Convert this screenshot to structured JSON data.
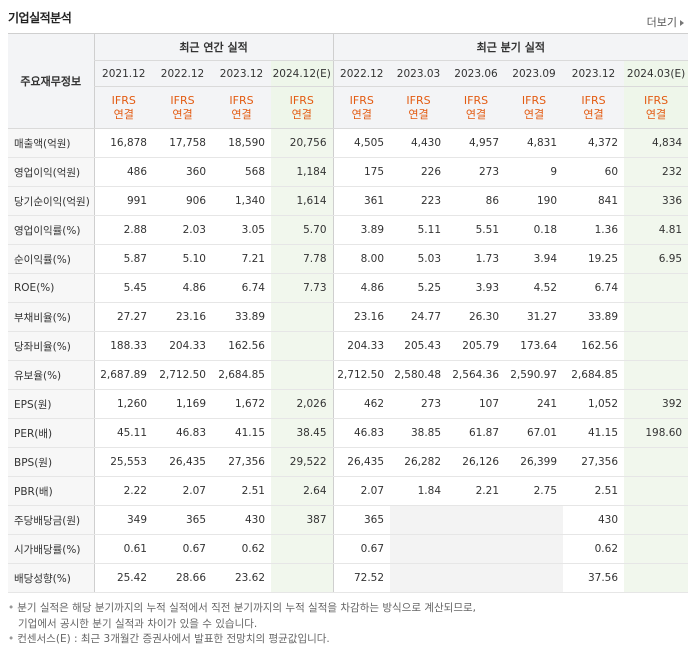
{
  "title": "기업실적분석",
  "more_label": "더보기",
  "header": {
    "corner": "주요재무정보",
    "annual_group": "최근 연간 실적",
    "quarter_group": "최근 분기 실적",
    "periods": [
      "2021.12",
      "2022.12",
      "2023.12",
      "2024.12(E)",
      "2022.12",
      "2023.03",
      "2023.06",
      "2023.09",
      "2023.12",
      "2024.03(E)"
    ],
    "basis_line1": "IFRS",
    "basis_line2": "연결"
  },
  "rows": [
    {
      "label": "매출액(억원)",
      "values": [
        "16,878",
        "17,758",
        "18,590",
        "20,756",
        "4,505",
        "4,430",
        "4,957",
        "4,831",
        "4,372",
        "4,834"
      ]
    },
    {
      "label": "영업이익(억원)",
      "values": [
        "486",
        "360",
        "568",
        "1,184",
        "175",
        "226",
        "273",
        "9",
        "60",
        "232"
      ]
    },
    {
      "label": "당기순이익(억원)",
      "values": [
        "991",
        "906",
        "1,340",
        "1,614",
        "361",
        "223",
        "86",
        "190",
        "841",
        "336"
      ]
    },
    {
      "label": "영업이익률(%)",
      "values": [
        "2.88",
        "2.03",
        "3.05",
        "5.70",
        "3.89",
        "5.11",
        "5.51",
        "0.18",
        "1.36",
        "4.81"
      ]
    },
    {
      "label": "순이익률(%)",
      "values": [
        "5.87",
        "5.10",
        "7.21",
        "7.78",
        "8.00",
        "5.03",
        "1.73",
        "3.94",
        "19.25",
        "6.95"
      ]
    },
    {
      "label": "ROE(%)",
      "values": [
        "5.45",
        "4.86",
        "6.74",
        "7.73",
        "4.86",
        "5.25",
        "3.93",
        "4.52",
        "6.74",
        ""
      ]
    },
    {
      "label": "부채비율(%)",
      "values": [
        "27.27",
        "23.16",
        "33.89",
        "",
        "23.16",
        "24.77",
        "26.30",
        "31.27",
        "33.89",
        ""
      ]
    },
    {
      "label": "당좌비율(%)",
      "values": [
        "188.33",
        "204.33",
        "162.56",
        "",
        "204.33",
        "205.43",
        "205.79",
        "173.64",
        "162.56",
        ""
      ]
    },
    {
      "label": "유보율(%)",
      "values": [
        "2,687.89",
        "2,712.50",
        "2,684.85",
        "",
        "2,712.50",
        "2,580.48",
        "2,564.36",
        "2,590.97",
        "2,684.85",
        ""
      ]
    },
    {
      "label": "EPS(원)",
      "values": [
        "1,260",
        "1,169",
        "1,672",
        "2,026",
        "462",
        "273",
        "107",
        "241",
        "1,052",
        "392"
      ]
    },
    {
      "label": "PER(배)",
      "values": [
        "45.11",
        "46.83",
        "41.15",
        "38.45",
        "46.83",
        "38.85",
        "61.87",
        "67.01",
        "41.15",
        "198.60"
      ]
    },
    {
      "label": "BPS(원)",
      "values": [
        "25,553",
        "26,435",
        "27,356",
        "29,522",
        "26,435",
        "26,282",
        "26,126",
        "26,399",
        "27,356",
        ""
      ]
    },
    {
      "label": "PBR(배)",
      "values": [
        "2.22",
        "2.07",
        "2.51",
        "2.64",
        "2.07",
        "1.84",
        "2.21",
        "2.75",
        "2.51",
        ""
      ]
    },
    {
      "label": "주당배당금(원)",
      "values": [
        "349",
        "365",
        "430",
        "387",
        "365",
        "",
        "",
        "",
        "430",
        ""
      ]
    },
    {
      "label": "시가배당률(%)",
      "values": [
        "0.61",
        "0.67",
        "0.62",
        "",
        "0.67",
        "",
        "",
        "",
        "0.62",
        ""
      ]
    },
    {
      "label": "배당성향(%)",
      "values": [
        "25.42",
        "28.66",
        "23.62",
        "",
        "72.52",
        "",
        "",
        "",
        "37.56",
        ""
      ]
    }
  ],
  "notes": [
    "분기 실적은 해당 분기까지의 누적 실적에서 직전 분기까지의 누적 실적을 차감하는 방식으로 계산되므로,",
    "기업에서 공시한 분기 실적과 차이가 있을 수 있습니다.",
    "컨센서스(E) : 최근 3개월간 증권사에서 발표한 전망치의 평균값입니다."
  ],
  "colors": {
    "ifrs": "#e35b12",
    "estimate_bg": "#eef6ea",
    "header_bg": "#f3f4f6"
  }
}
